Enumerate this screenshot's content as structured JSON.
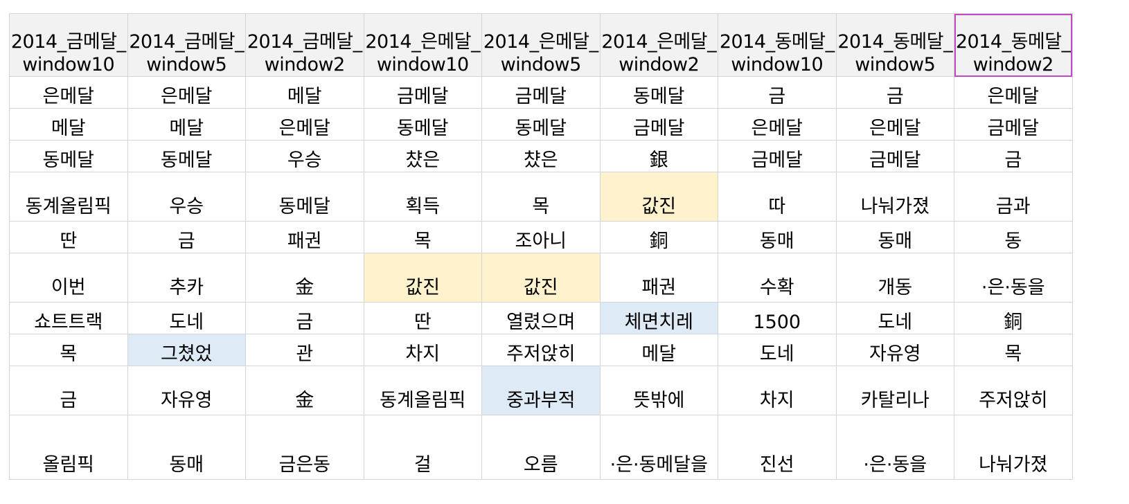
{
  "columns": [
    {
      "line1": "2014_금메달_",
      "line2": "window10"
    },
    {
      "line1": "2014_금메달_",
      "line2": "window5"
    },
    {
      "line1": "2014_금메달_",
      "line2": "window2"
    },
    {
      "line1": "2014_은메달_",
      "line2": "window10"
    },
    {
      "line1": "2014_은메달_",
      "line2": "window5"
    },
    {
      "line1": "2014_은메달_",
      "line2": "window2"
    },
    {
      "line1": "2014_동메달_",
      "line2": "window10"
    },
    {
      "line1": "2014_동메달_",
      "line2": "window5"
    },
    {
      "line1": "2014_동메달_",
      "line2": "window2"
    }
  ],
  "rows": [
    [
      "은메달",
      "은메달",
      "메달",
      "금메달",
      "금메달",
      "동메달",
      "금",
      "금",
      "은메달"
    ],
    [
      "메달",
      "메달",
      "은메달",
      "동메달",
      "동메달",
      "금메달",
      "은메달",
      "은메달",
      "금메달"
    ],
    [
      "동메달",
      "동메달",
      "우승",
      "챴은",
      "챴은",
      "銀",
      "금메달",
      "금메달",
      "금"
    ],
    [
      "동계올림픽",
      "우승",
      "동메달",
      "획득",
      "목",
      "값진",
      "따",
      "나눠가졌",
      "금과"
    ],
    [
      "딴",
      "금",
      "패권",
      "목",
      "조아니",
      "銅",
      "동매",
      "동매",
      "동"
    ],
    [
      "이번",
      "추카",
      "金",
      "값진",
      "값진",
      "패권",
      "수확",
      "개동",
      "·은·동을"
    ],
    [
      "쇼트트랙",
      "도네",
      "금",
      "딴",
      "열렸으며",
      "체면치레",
      "1500",
      "도네",
      "銅"
    ],
    [
      "목",
      "그쳤었",
      "관",
      "차지",
      "주저앉히",
      "메달",
      "도네",
      "자유영",
      "목"
    ],
    [
      "금",
      "자유영",
      "金",
      "동계올림픽",
      "중과부적",
      "뜻밖에",
      "차지",
      "카탈리나",
      "주저앉히"
    ],
    [
      "올림픽",
      "동매",
      "금은동",
      "걸",
      "오름",
      "·은·동메달을",
      "진선",
      "·은·동을",
      "나눠가졌"
    ]
  ],
  "colors": {
    "header_bg": "#f2f2f2",
    "highlight_yellow": "#fff2cc",
    "highlight_blue": "#deebf7",
    "selection_border": "#c04ac4",
    "grid_line": "#d4d4d4"
  }
}
